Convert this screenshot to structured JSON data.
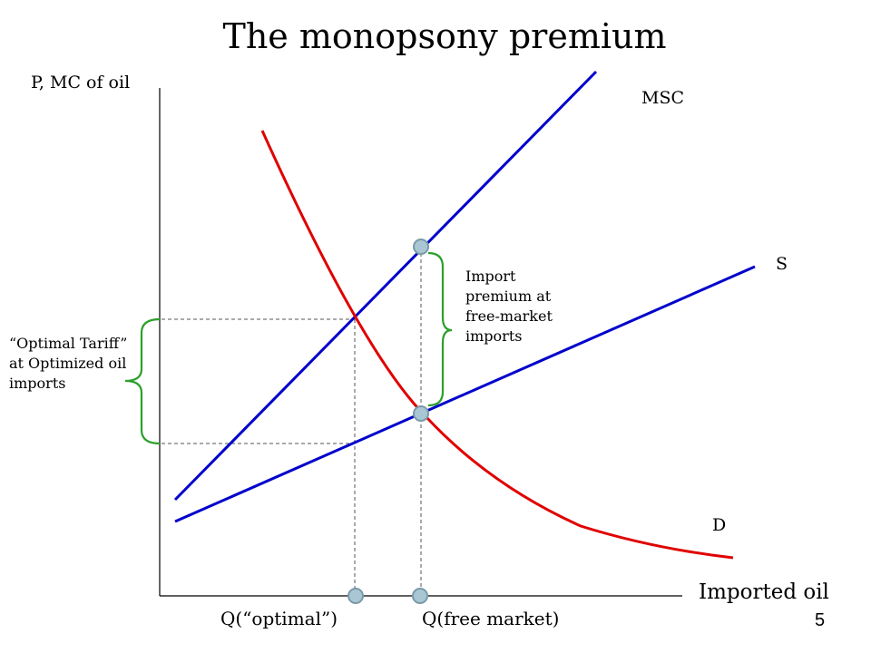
{
  "title": "The monopsony premium",
  "y_axis_label": "P, MC of oil",
  "x_axis_label": "Imported oil",
  "curves": {
    "msc": {
      "label": "MSC",
      "color": "#0000cc"
    },
    "supply": {
      "label": "S",
      "color": "#0000cc"
    },
    "demand": {
      "label": "D",
      "color": "#e00000"
    }
  },
  "annotations": {
    "import_premium": "Import premium at free-market imports",
    "optimal_tariff": "“Optimal Tariff” at Optimized oil imports"
  },
  "x_markers": {
    "optimal": "Q(“optimal”)",
    "free_market": "Q(free market)"
  },
  "slide_number": "5",
  "colors": {
    "brace": "#2ca02c",
    "marker_fill": "#a9c6d4",
    "marker_stroke": "#7a9aa8",
    "guide": "#555555"
  }
}
